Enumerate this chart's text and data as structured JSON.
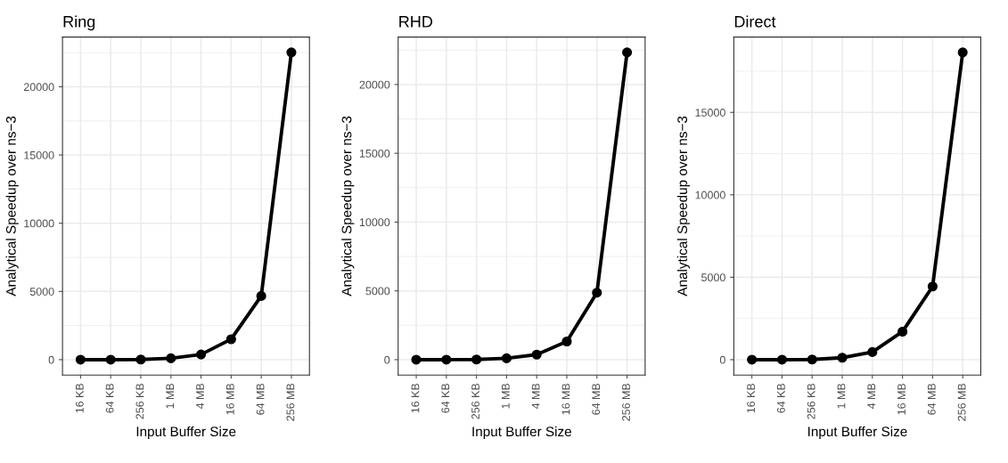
{
  "chart_data": [
    {
      "type": "line",
      "title": "Ring",
      "xlabel": "Input Buffer Size",
      "ylabel": "Analytical Speedup over ns−3",
      "categories": [
        "16 KB",
        "64 KB",
        "256 KB",
        "1 MB",
        "4 MB",
        "16 MB",
        "64 MB",
        "256 MB"
      ],
      "series": [
        {
          "color": "#000000",
          "values": [
            0,
            0,
            10,
            100,
            380,
            1500,
            4670,
            22520
          ]
        }
      ],
      "ylim": [
        -1126,
        23646
      ],
      "yticks": [
        0,
        5000,
        10000,
        15000,
        20000
      ],
      "grid": true,
      "marker": "circle",
      "line_style": "solid"
    },
    {
      "type": "line",
      "title": "RHD",
      "xlabel": "Input Buffer Size",
      "ylabel": "Analytical Speedup over ns−3",
      "categories": [
        "16 KB",
        "64 KB",
        "256 KB",
        "1 MB",
        "4 MB",
        "16 MB",
        "64 MB",
        "256 MB"
      ],
      "series": [
        {
          "color": "#000000",
          "values": [
            0,
            0,
            10,
            100,
            365,
            1320,
            4870,
            22335
          ]
        }
      ],
      "ylim": [
        -1117,
        23450
      ],
      "yticks": [
        0,
        5000,
        10000,
        15000,
        20000
      ],
      "grid": true,
      "marker": "circle",
      "line_style": "solid"
    },
    {
      "type": "line",
      "title": "Direct",
      "xlabel": "Input Buffer Size",
      "ylabel": "Analytical Speedup over ns−3",
      "categories": [
        "16 KB",
        "64 KB",
        "256 KB",
        "1 MB",
        "4 MB",
        "16 MB",
        "64 MB",
        "256 MB"
      ],
      "series": [
        {
          "color": "#000000",
          "values": [
            0,
            0,
            10,
            120,
            460,
            1700,
            4440,
            18640
          ]
        }
      ],
      "ylim": [
        -932,
        19572
      ],
      "yticks": [
        0,
        5000,
        10000,
        15000
      ],
      "grid": true,
      "marker": "circle",
      "line_style": "solid"
    }
  ]
}
